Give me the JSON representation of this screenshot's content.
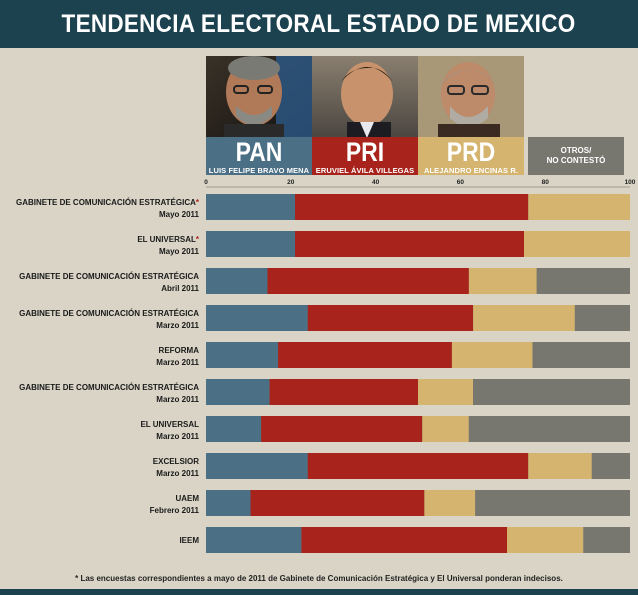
{
  "title": "TENDENCIA ELECTORAL ESTADO DE MEXICO",
  "candidates": [
    {
      "party": "PAN",
      "name": "LUIS FELIPE BRAVO MENA",
      "color": "#4b6f85"
    },
    {
      "party": "PRI",
      "name": "ERUVIEL ÁVILA VILLEGAS",
      "color": "#a8231c"
    },
    {
      "party": "PRD",
      "name": "ALEJANDRO ENCINAS R.",
      "color": "#d4b46e"
    }
  ],
  "otros": {
    "line1": "OTROS/",
    "line2": "NO CONTESTÓ",
    "color": "#77776f"
  },
  "footnote": "* Las encuestas correspondientes a mayo de 2011 de Gabinete de Comunicación Estratégica  y El Universal ponderan indecisos.",
  "chart_data": {
    "type": "bar",
    "orientation": "horizontal",
    "stacked": true,
    "xlim": [
      0,
      100
    ],
    "xticks": [
      0,
      20,
      40,
      60,
      80,
      100
    ],
    "grid": false,
    "categories": [
      {
        "source": "GABINETE DE COMUNICACIÓN ESTRATÉGICA",
        "asterisk": true,
        "date": "Mayo 2011"
      },
      {
        "source": "EL UNIVERSAL",
        "asterisk": true,
        "date": "Mayo 2011"
      },
      {
        "source": "GABINETE DE COMUNICACIÓN ESTRATÉGICA",
        "asterisk": false,
        "date": "Abril 2011"
      },
      {
        "source": "GABINETE DE COMUNICACIÓN ESTRATÉGICA",
        "asterisk": false,
        "date": "Marzo 2011"
      },
      {
        "source": "REFORMA",
        "asterisk": false,
        "date": "Marzo 2011"
      },
      {
        "source": "GABINETE DE COMUNICACIÓN ESTRATÉGICA",
        "asterisk": false,
        "date": "Marzo 2011"
      },
      {
        "source": "EL UNIVERSAL",
        "asterisk": false,
        "date": "Marzo 2011"
      },
      {
        "source": "EXCELSIOR",
        "asterisk": false,
        "date": "Marzo 2011"
      },
      {
        "source": "UAEM",
        "asterisk": false,
        "date": "Febrero 2011"
      },
      {
        "source": "IEEM",
        "asterisk": false,
        "date": ""
      }
    ],
    "series": [
      {
        "name": "PAN",
        "color": "#4b6f85",
        "values": [
          21,
          21,
          14.5,
          24,
          17,
          15,
          13,
          24,
          10.5,
          22.5
        ]
      },
      {
        "name": "PRI",
        "color": "#a8231c",
        "values": [
          55,
          54,
          47.5,
          39,
          41,
          35,
          38,
          52,
          41,
          48.5
        ]
      },
      {
        "name": "PRD",
        "color": "#d4b46e",
        "values": [
          24,
          25,
          16,
          24,
          19,
          13,
          11,
          15,
          12,
          18
        ]
      },
      {
        "name": "OTROS/NO CONTESTÓ",
        "color": "#77776f",
        "values": [
          0,
          0,
          22,
          13,
          23,
          37,
          38,
          9,
          36.5,
          11
        ]
      }
    ]
  }
}
